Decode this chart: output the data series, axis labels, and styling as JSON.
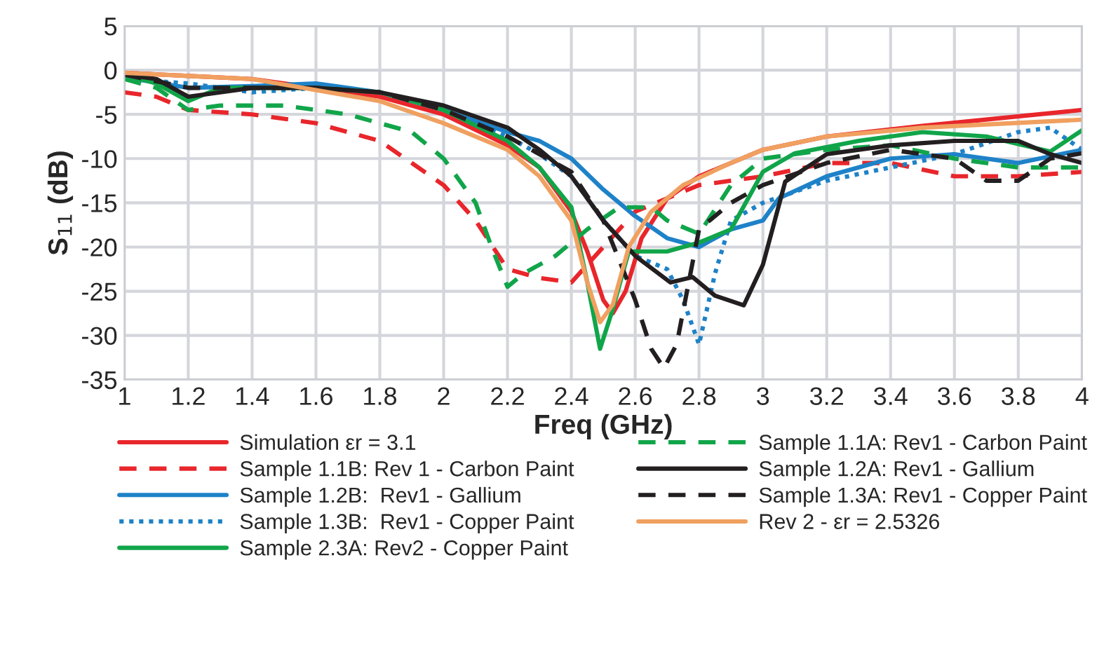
{
  "chart_data": {
    "type": "line",
    "xlabel": "Freq (GHz)",
    "ylabel": "S$_{11}$ (dB)",
    "xlim": [
      1,
      4
    ],
    "ylim": [
      -35,
      5
    ],
    "xticks": [
      1,
      1.2,
      1.4,
      1.6,
      1.8,
      2,
      2.2,
      2.4,
      2.6,
      2.8,
      3,
      3.2,
      3.4,
      3.6,
      3.8,
      4
    ],
    "yticks": [
      -35,
      -30,
      -25,
      -20,
      -15,
      -10,
      -5,
      0,
      5
    ],
    "grid": true,
    "legend": "bottom",
    "line_style": "solid",
    "marker": "none",
    "series": [
      {
        "name": "Simulation εr = 3.1",
        "color": "#e8262b",
        "x": [
          1,
          1.4,
          1.8,
          2.0,
          2.2,
          2.3,
          2.4,
          2.45,
          2.5,
          2.53,
          2.57,
          2.62,
          2.7,
          2.8,
          3.0,
          3.2,
          3.5,
          4
        ],
        "values": [
          -0.3,
          -1,
          -3,
          -5,
          -8.5,
          -11,
          -16,
          -20.5,
          -26,
          -27.5,
          -25,
          -19,
          -14.5,
          -12,
          -9,
          -7.5,
          -6.3,
          -4.5
        ]
      },
      {
        "name": "Sample 1.1B: Rev 1 - Carbon Paint",
        "color": "#e8262b",
        "line_style": "dashed",
        "x": [
          1,
          1.1,
          1.2,
          1.4,
          1.6,
          1.8,
          2.0,
          2.1,
          2.2,
          2.3,
          2.4,
          2.5,
          2.6,
          2.7,
          2.8,
          3.0,
          3.2,
          3.4,
          3.6,
          3.8,
          4
        ],
        "values": [
          -2.5,
          -3,
          -4.5,
          -5,
          -6,
          -8,
          -13,
          -17,
          -22.5,
          -23.5,
          -24,
          -20,
          -16,
          -14.5,
          -13,
          -12,
          -10.5,
          -10.5,
          -12,
          -12,
          -11.5
        ]
      },
      {
        "name": "Sample 1.2B:  Rev1 - Gallium",
        "color": "#1e82c8",
        "x": [
          1,
          1.2,
          1.4,
          1.6,
          1.8,
          2.0,
          2.2,
          2.3,
          2.4,
          2.5,
          2.6,
          2.7,
          2.8,
          2.9,
          3.0,
          3.05,
          3.2,
          3.4,
          3.6,
          3.8,
          4
        ],
        "values": [
          -0.8,
          -2,
          -1.8,
          -1.5,
          -2.5,
          -4.5,
          -7,
          -8,
          -10,
          -13.5,
          -16.5,
          -19,
          -20,
          -18,
          -17,
          -14.5,
          -12,
          -10,
          -9.5,
          -10.5,
          -9
        ]
      },
      {
        "name": "Sample 1.3B:  Rev1 - Copper Paint",
        "color": "#1e82c8",
        "line_style": "dotted",
        "x": [
          1,
          1.2,
          1.4,
          1.6,
          1.8,
          2.0,
          2.2,
          2.3,
          2.4,
          2.5,
          2.6,
          2.7,
          2.75,
          2.8,
          2.85,
          2.9,
          3.0,
          3.2,
          3.4,
          3.6,
          3.8,
          3.9,
          4
        ],
        "values": [
          -1,
          -1.5,
          -2.5,
          -2,
          -2.5,
          -4.5,
          -7.5,
          -9.5,
          -12,
          -17,
          -21,
          -22.5,
          -26,
          -31,
          -23,
          -17,
          -15,
          -12.5,
          -11,
          -9.5,
          -7,
          -6.5,
          -9
        ]
      },
      {
        "name": "Sample 2.3A: Rev2 - Copper Paint",
        "color": "#11a54a",
        "x": [
          1,
          1.1,
          1.2,
          1.3,
          1.4,
          1.6,
          1.8,
          2.0,
          2.2,
          2.3,
          2.4,
          2.45,
          2.49,
          2.53,
          2.58,
          2.7,
          2.8,
          2.9,
          3.0,
          3.1,
          3.3,
          3.5,
          3.7,
          3.9,
          4
        ],
        "values": [
          -0.5,
          -1.5,
          -3.5,
          -2,
          -2,
          -2,
          -2.5,
          -4.5,
          -8,
          -11,
          -15.5,
          -24,
          -31.5,
          -27,
          -20.5,
          -20.5,
          -19.5,
          -18,
          -11.5,
          -9.4,
          -8,
          -7,
          -7.5,
          -9.2,
          -6.8
        ]
      },
      {
        "name": "Sample 1.1A: Rev1 - Carbon Paint",
        "color": "#11a54a",
        "line_style": "dashed",
        "x": [
          1,
          1.1,
          1.2,
          1.3,
          1.5,
          1.7,
          1.9,
          2.0,
          2.1,
          2.15,
          2.2,
          2.25,
          2.35,
          2.45,
          2.55,
          2.65,
          2.7,
          2.8,
          2.9,
          3.0,
          3.2,
          3.4,
          3.6,
          3.8,
          4
        ],
        "values": [
          -1,
          -2,
          -4.5,
          -4,
          -4,
          -5,
          -7,
          -10,
          -15,
          -20,
          -24.5,
          -23,
          -21,
          -18,
          -15.5,
          -15.5,
          -17,
          -18.5,
          -13,
          -10,
          -9,
          -8.5,
          -10,
          -11,
          -11
        ]
      },
      {
        "name": "Sample 1.2A: Rev1 - Gallium",
        "color": "#231f20",
        "x": [
          1,
          1.1,
          1.2,
          1.3,
          1.4,
          1.6,
          1.8,
          2.0,
          2.2,
          2.3,
          2.4,
          2.5,
          2.6,
          2.71,
          2.78,
          2.85,
          2.94,
          3.0,
          3.07,
          3.2,
          3.4,
          3.6,
          3.8,
          3.9,
          4
        ],
        "values": [
          -0.5,
          -1,
          -3,
          -2.5,
          -2,
          -2,
          -2.5,
          -4,
          -6.5,
          -9,
          -12,
          -17,
          -21,
          -24,
          -23.4,
          -25.5,
          -26.6,
          -22,
          -12.6,
          -9.5,
          -8.5,
          -8,
          -8,
          -9.5,
          -10.5
        ]
      },
      {
        "name": "Sample 1.3A: Rev1 - Copper Paint",
        "color": "#231f20",
        "line_style": "dashed",
        "x": [
          1,
          1.2,
          1.4,
          1.6,
          1.8,
          2.0,
          2.2,
          2.4,
          2.5,
          2.6,
          2.65,
          2.69,
          2.73,
          2.8,
          2.9,
          3.0,
          3.2,
          3.4,
          3.6,
          3.7,
          3.8,
          3.9,
          4
        ],
        "values": [
          -0.5,
          -2,
          -2,
          -2,
          -2.5,
          -4.5,
          -7.5,
          -11.5,
          -17,
          -26,
          -31.5,
          -33.7,
          -31,
          -18,
          -15,
          -13,
          -10.5,
          -9,
          -10,
          -12.5,
          -12.5,
          -10,
          -9.4
        ]
      },
      {
        "name": "Rev 2 - εr = 2.5326",
        "color": "#f0a060",
        "x": [
          1,
          1.4,
          1.8,
          2.0,
          2.2,
          2.3,
          2.4,
          2.45,
          2.49,
          2.53,
          2.58,
          2.65,
          2.75,
          2.9,
          3.0,
          3.2,
          3.5,
          4
        ],
        "values": [
          -0.3,
          -1,
          -3.5,
          -6,
          -9,
          -12,
          -17,
          -24,
          -28.5,
          -26.5,
          -20,
          -16,
          -13,
          -10.5,
          -9,
          -7.5,
          -6.5,
          -5.6
        ]
      }
    ]
  }
}
